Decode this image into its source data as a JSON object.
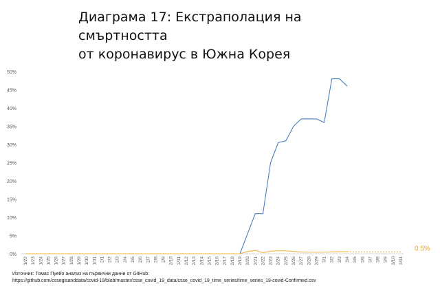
{
  "title_line1": "Диаграма 17: Екстраполация на смъртността",
  "title_line2": "от коронавирус в Южна Корея",
  "source_line1": "Източник: Томас Пуейо анализ на първични данни от GitHub:",
  "source_line2": "https://github.com/cssegisanddata/covid-19/blob/master/csse_covid_19_data/csse_covid_19_time_series/time_series_19-covid-Confirmed.csv",
  "chart_data": {
    "type": "line",
    "categories": [
      "1/22",
      "1/23",
      "1/24",
      "1/25",
      "1/26",
      "1/27",
      "1/28",
      "1/29",
      "1/30",
      "1/31",
      "2/1",
      "2/2",
      "2/3",
      "2/4",
      "2/5",
      "2/6",
      "2/7",
      "2/8",
      "2/9",
      "2/10",
      "2/11",
      "2/12",
      "2/13",
      "2/14",
      "2/15",
      "2/16",
      "2/17",
      "2/18",
      "2/19",
      "2/20",
      "2/21",
      "2/22",
      "2/23",
      "2/24",
      "2/25",
      "2/26",
      "2/27",
      "2/28",
      "2/29",
      "3/1",
      "3/2",
      "3/3",
      "3/4",
      "3/5",
      "3/6",
      "3/7",
      "3/8",
      "3/9",
      "3/10",
      "3/11"
    ],
    "ylim": [
      0,
      50
    ],
    "yticks": [
      "0%",
      "5%",
      "10%",
      "15%",
      "20%",
      "25%",
      "30%",
      "35%",
      "40%",
      "45%",
      "50%"
    ],
    "series": [
      {
        "color": "#4a7ebb",
        "values": [
          0,
          0,
          0,
          0,
          0,
          0,
          0,
          0,
          0,
          0,
          0,
          0,
          0,
          0,
          0,
          0,
          0,
          0,
          0,
          0,
          0,
          0,
          0,
          0,
          0,
          0,
          0,
          0,
          0,
          5.5,
          11,
          11,
          25,
          30.5,
          31,
          35,
          37,
          37,
          37,
          36,
          48,
          48,
          46,
          null,
          null,
          null,
          null,
          null,
          null,
          null
        ]
      },
      {
        "color": "#f0b443",
        "values": [
          0,
          0,
          0,
          0,
          0,
          0,
          0,
          0,
          0,
          0,
          0,
          0,
          0,
          0,
          0,
          0,
          0,
          0,
          0,
          0,
          0,
          0,
          0,
          0,
          0,
          0,
          0,
          0,
          0,
          0.6,
          0.9,
          0.3,
          0.7,
          0.8,
          0.8,
          0.6,
          0.5,
          0.45,
          0.4,
          0.45,
          0.5,
          0.55,
          0.55,
          null,
          null,
          null,
          null,
          null,
          null,
          null
        ]
      },
      {
        "color": "#f0b443",
        "dashed": true,
        "values": [
          null,
          null,
          null,
          null,
          null,
          null,
          null,
          null,
          null,
          null,
          null,
          null,
          null,
          null,
          null,
          null,
          null,
          null,
          null,
          null,
          null,
          null,
          null,
          null,
          null,
          null,
          null,
          null,
          null,
          null,
          null,
          null,
          null,
          null,
          null,
          null,
          null,
          null,
          null,
          null,
          null,
          null,
          0.55,
          0.5,
          0.5,
          0.5,
          0.5,
          0.5,
          0.5,
          0.5
        ]
      }
    ],
    "annotation": "0.5%",
    "annotation_color": "#e3a22c",
    "gridlines": false
  }
}
